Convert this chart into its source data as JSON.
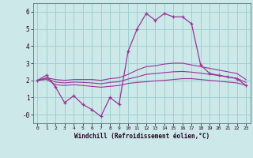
{
  "xlabel": "Windchill (Refroidissement éolien,°C)",
  "ylabel": "",
  "bg_color": "#cce8e8",
  "grid_color": "#99cccc",
  "line_color": "#993399",
  "x_hours": [
    0,
    1,
    2,
    3,
    4,
    5,
    6,
    7,
    8,
    9,
    10,
    11,
    12,
    13,
    14,
    15,
    16,
    17,
    18,
    19,
    20,
    21,
    22,
    23
  ],
  "y_windchill": [
    2.0,
    2.3,
    1.6,
    0.7,
    1.1,
    0.6,
    0.3,
    -0.1,
    1.0,
    0.6,
    3.7,
    5.0,
    5.9,
    5.5,
    5.9,
    5.7,
    5.7,
    5.3,
    2.9,
    2.4,
    2.3,
    2.2,
    2.1,
    1.7
  ],
  "y_upper": [
    2.0,
    2.15,
    2.05,
    2.0,
    2.05,
    2.05,
    2.05,
    2.0,
    2.1,
    2.15,
    2.35,
    2.6,
    2.8,
    2.85,
    2.95,
    3.0,
    3.0,
    2.9,
    2.8,
    2.7,
    2.6,
    2.5,
    2.4,
    2.05
  ],
  "y_lower": [
    2.0,
    2.05,
    1.75,
    1.7,
    1.75,
    1.7,
    1.65,
    1.6,
    1.65,
    1.7,
    1.82,
    1.88,
    1.92,
    1.97,
    2.0,
    2.05,
    2.1,
    2.1,
    2.05,
    2.0,
    1.95,
    1.9,
    1.85,
    1.72
  ],
  "y_mean": [
    2.0,
    2.1,
    1.9,
    1.85,
    1.9,
    1.88,
    1.85,
    1.8,
    1.88,
    1.92,
    2.08,
    2.2,
    2.35,
    2.4,
    2.45,
    2.5,
    2.52,
    2.48,
    2.42,
    2.35,
    2.28,
    2.2,
    2.12,
    1.88
  ],
  "ylim": [
    -0.5,
    6.5
  ],
  "xlim": [
    -0.5,
    23.5
  ],
  "yticks": [
    0,
    1,
    2,
    3,
    4,
    5,
    6
  ],
  "ytick_labels": [
    "-0",
    "1",
    "2",
    "3",
    "4",
    "5",
    "6"
  ]
}
